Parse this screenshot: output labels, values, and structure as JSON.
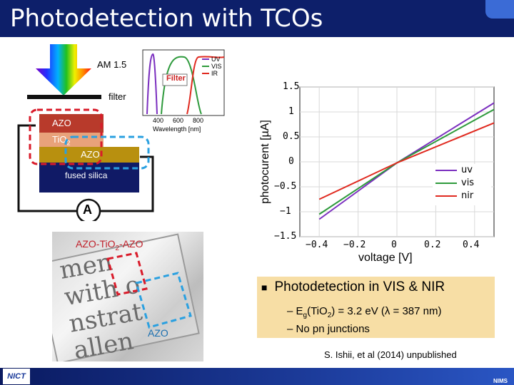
{
  "slide": {
    "title": "Photodetection with TCOs",
    "colors": {
      "title_bar": "#0d1f6a",
      "footer_bar": "#1c3b9a",
      "highlight": "#f7dea5"
    }
  },
  "device": {
    "light_label": "AM 1.5",
    "filter_label": "filter",
    "layers": {
      "azo_top": "AZO",
      "tio2_main": "TiO",
      "tio2_sub": "2",
      "azo_bottom": "AZO",
      "substrate": "fused silica"
    },
    "ammeter_symbol": "A",
    "colors": {
      "azo_top": "#b83a2b",
      "tio2": "#e8a27a",
      "azo_bottom": "#b8900f",
      "substrate": "#101a66",
      "red_box": "#d91b2a",
      "blue_box": "#2aa0e0"
    }
  },
  "filter_inset": {
    "legend_title": "Filter",
    "legend_entries": [
      "UV",
      "VIS",
      "IR"
    ],
    "x_ticks": [
      "400",
      "600",
      "800"
    ],
    "xlabel": "Wavelength [nm]"
  },
  "photo": {
    "label_main": "AZO-TiO",
    "label_sub": "2",
    "label_tail": "-AZO",
    "label_bottom": "AZO",
    "caption_text": "men\nwith o\nnstrat\nallen"
  },
  "chart_data": {
    "type": "line",
    "xlabel": "voltage [V]",
    "ylabel": "photocurent [µA]",
    "xlim": [
      -0.5,
      0.5
    ],
    "ylim": [
      -1.5,
      1.5
    ],
    "x_ticks": [
      "−0.4",
      "−0.2",
      "0",
      "0.2",
      "0.4"
    ],
    "y_ticks": [
      "1.5",
      "1",
      "0.5",
      "0",
      "−0.5",
      "−1",
      "−1.5"
    ],
    "legend": "bottom-right",
    "grid": true,
    "series": [
      {
        "name": "uv",
        "color": "#7b2fbf",
        "x": [
          -0.4,
          0.0,
          0.5
        ],
        "y": [
          -1.15,
          -0.02,
          1.18
        ]
      },
      {
        "name": "vis",
        "color": "#2e9a3c",
        "x": [
          -0.4,
          0.0,
          0.5
        ],
        "y": [
          -1.05,
          -0.02,
          1.05
        ]
      },
      {
        "name": "nir",
        "color": "#e02a20",
        "x": [
          -0.4,
          0.0,
          0.5
        ],
        "y": [
          -0.75,
          -0.02,
          0.78
        ]
      }
    ]
  },
  "bullets": {
    "main": "Photodetection in VIS & NIR",
    "sub1_prefix": "– E",
    "sub1_sub": "g",
    "sub1_mid": "(TiO",
    "sub1_sub2": "2",
    "sub1_tail": ") = 3.2 eV (λ = 387 nm)",
    "sub2": "– No pn junctions"
  },
  "citation": "S. Ishii, et al (2014) unpublished",
  "logos": {
    "left": "NICT",
    "right": "NIMS"
  }
}
